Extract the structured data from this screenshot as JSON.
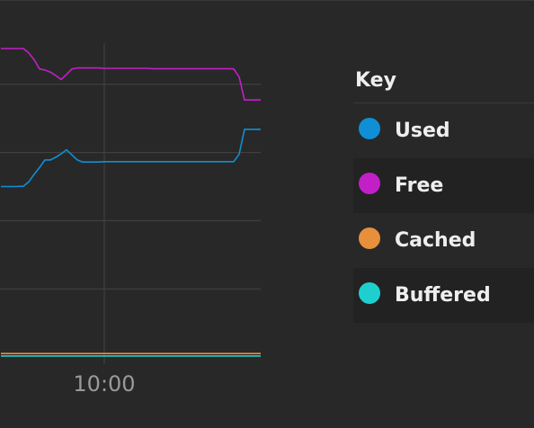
{
  "chart_data": {
    "type": "line",
    "x_ticks": [
      "10:00"
    ],
    "ylim": [
      0,
      100
    ],
    "grid": true,
    "legend_position": "right",
    "series": [
      {
        "name": "Used",
        "color": "#0f8fd6",
        "x": [
          -115,
          -99,
          -90,
          -84,
          -78,
          -72,
          -66,
          -60,
          -54,
          -48,
          -42,
          -36,
          -30,
          -24,
          -18,
          -12,
          -6,
          0,
          6,
          12,
          18,
          24,
          30,
          36,
          42,
          48,
          54,
          60,
          66,
          72,
          78,
          84,
          90,
          96,
          102,
          108,
          114,
          120,
          126,
          132,
          138,
          144,
          150,
          156,
          162,
          168,
          174
        ],
        "values": [
          50.0,
          50.0,
          50.1,
          51.4,
          53.6,
          55.6,
          57.8,
          57.8,
          58.6,
          59.6,
          60.8,
          59.3,
          57.8,
          57.2,
          57.2,
          57.2,
          57.2,
          57.3,
          57.3,
          57.3,
          57.3,
          57.3,
          57.3,
          57.3,
          57.3,
          57.3,
          57.3,
          57.3,
          57.3,
          57.3,
          57.3,
          57.3,
          57.3,
          57.3,
          57.3,
          57.3,
          57.3,
          57.3,
          57.3,
          57.3,
          57.3,
          57.3,
          59.5,
          66.8,
          66.8,
          66.8,
          66.8
        ]
      },
      {
        "name": "Free",
        "color": "#c21fc8",
        "x": [
          -115,
          -99,
          -90,
          -84,
          -78,
          -72,
          -66,
          -60,
          -54,
          -48,
          -42,
          -36,
          -30,
          -24,
          -18,
          -12,
          -6,
          0,
          6,
          12,
          18,
          24,
          30,
          36,
          42,
          48,
          54,
          60,
          66,
          72,
          78,
          84,
          90,
          96,
          102,
          108,
          114,
          120,
          126,
          132,
          138,
          144,
          150,
          156,
          162,
          168,
          174
        ],
        "values": [
          90.5,
          90.5,
          90.5,
          89.2,
          87.2,
          84.5,
          84.2,
          83.6,
          82.6,
          81.4,
          82.9,
          84.5,
          84.8,
          84.8,
          84.8,
          84.8,
          84.8,
          84.7,
          84.7,
          84.7,
          84.7,
          84.7,
          84.7,
          84.7,
          84.7,
          84.7,
          84.6,
          84.6,
          84.6,
          84.6,
          84.6,
          84.6,
          84.6,
          84.6,
          84.6,
          84.6,
          84.6,
          84.6,
          84.6,
          84.6,
          84.6,
          84.5,
          82.2,
          75.4,
          75.4,
          75.4,
          75.4
        ]
      },
      {
        "name": "Cached",
        "color": "#e88f3c",
        "x": [
          -115,
          174
        ],
        "values": [
          1.0,
          1.0
        ]
      },
      {
        "name": "Buffered",
        "color": "#1fcfcf",
        "x": [
          -115,
          174
        ],
        "values": [
          0.3,
          0.3
        ]
      }
    ]
  },
  "legend": {
    "title": "Key",
    "items": [
      {
        "label": "Used",
        "color": "#0f8fd6"
      },
      {
        "label": "Free",
        "color": "#c21fc8"
      },
      {
        "label": "Cached",
        "color": "#e88f3c"
      },
      {
        "label": "Buffered",
        "color": "#1fcfcf"
      }
    ]
  }
}
